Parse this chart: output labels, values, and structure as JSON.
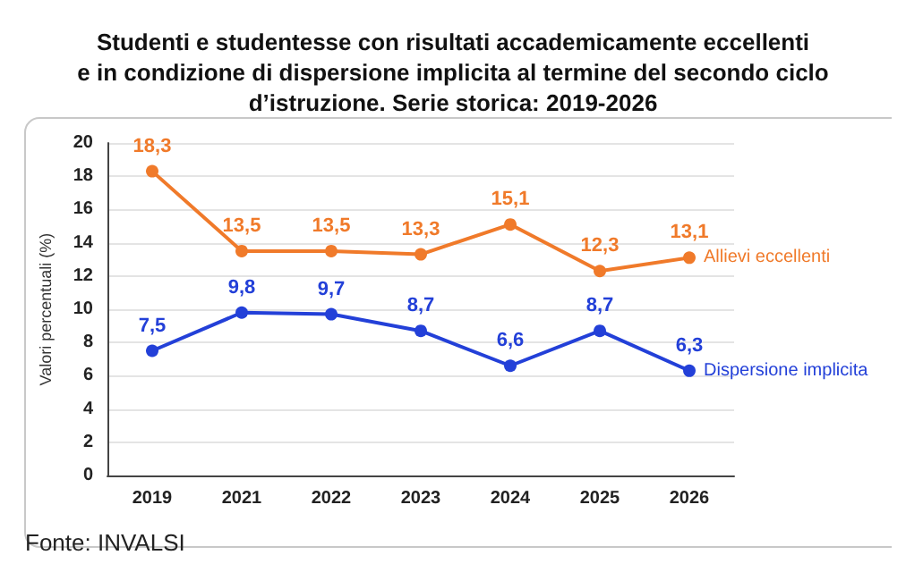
{
  "chart_data": {
    "type": "line",
    "title": "Studenti e studentesse con risultati accademicamente eccellenti\ne in condizione di dispersione implicita al termine del secondo ciclo\nd’istruzione. Serie storica: 2019-2026",
    "ylabel": "Valori percentuali (%)",
    "annotations": [
      "Fonte: INVALSI"
    ],
    "categories": [
      "2019",
      "2021",
      "2022",
      "2023",
      "2024",
      "2025",
      "2026"
    ],
    "series": [
      {
        "name": "Allievi eccellenti",
        "color": "#f07a2a",
        "values": [
          18.3,
          13.5,
          13.5,
          13.3,
          15.1,
          12.3,
          13.1
        ],
        "value_labels": [
          "18,3",
          "13,5",
          "13,5",
          "13,3",
          "15,1",
          "12,3",
          "13,1"
        ]
      },
      {
        "name": "Dispersione implicita",
        "color": "#2340d8",
        "values": [
          7.5,
          9.8,
          9.7,
          8.7,
          6.6,
          8.7,
          6.3
        ],
        "value_labels": [
          "7,5",
          "9,8",
          "9,7",
          "8,7",
          "6,6",
          "8,7",
          "6,3"
        ]
      }
    ],
    "ylim": [
      0,
      20
    ],
    "yticks": [
      0,
      2,
      4,
      6,
      8,
      10,
      12,
      14,
      16,
      18,
      20
    ],
    "grid": "y",
    "legend": false,
    "marker": "circle",
    "line_style": "solid"
  }
}
